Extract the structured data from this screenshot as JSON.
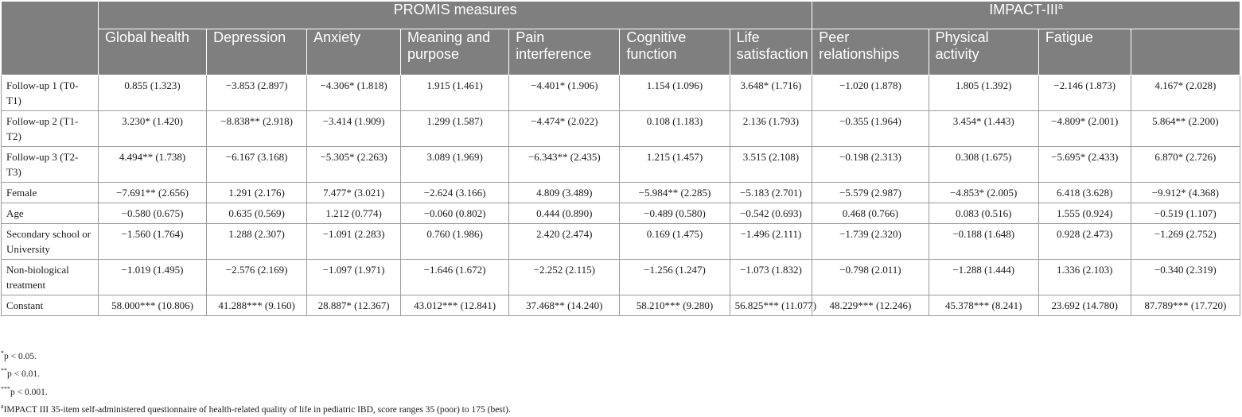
{
  "header": {
    "group_promis": "PROMIS measures",
    "group_impact": "IMPACT-III",
    "group_impact_sup": "a",
    "columns": [
      "Global health",
      "Depression",
      "Anxiety",
      "Meaning and purpose",
      "Pain interference",
      "Cognitive function",
      "Life satisfaction",
      "Peer relationships",
      "Physical activity",
      "Fatigue",
      ""
    ]
  },
  "rows": [
    {
      "label": "Follow-up 1 (T0-T1)",
      "cells": [
        "0.855 (1.323)",
        "−3.853 (2.897)",
        "−4.306* (1.818)",
        "1.915 (1.461)",
        "−4.401* (1.906)",
        "1.154 (1.096)",
        "3.648* (1.716)",
        "−1.020 (1.878)",
        "1.805 (1.392)",
        "−2.146 (1.873)",
        "4.167* (2.028)"
      ]
    },
    {
      "label": "Follow-up 2 (T1-T2)",
      "cells": [
        "3.230* (1.420)",
        "−8.838** (2.918)",
        "−3.414 (1.909)",
        "1.299 (1.587)",
        "−4.474* (2.022)",
        "0.108 (1.183)",
        "2.136 (1.793)",
        "−0.355 (1.964)",
        "3.454* (1.443)",
        "−4.809* (2.001)",
        "5.864** (2.200)"
      ]
    },
    {
      "label": "Follow-up 3 (T2-T3)",
      "cells": [
        "4.494** (1.738)",
        "−6.167 (3.168)",
        "−5.305* (2.263)",
        "3.089 (1.969)",
        "−6.343** (2.435)",
        "1.215 (1.457)",
        "3.515 (2.108)",
        "−0.198 (2.313)",
        "0.308 (1.675)",
        "−5.695* (2.433)",
        "6.870* (2.726)"
      ]
    },
    {
      "label": "Female",
      "cells": [
        "−7.691** (2.656)",
        "1.291 (2.176)",
        "7.477* (3.021)",
        "−2.624 (3.166)",
        "4.809 (3.489)",
        "−5.984** (2.285)",
        "−5.183 (2.701)",
        "−5.579 (2.987)",
        "−4.853* (2.005)",
        "6.418 (3.628)",
        "−9.912* (4.368)"
      ]
    },
    {
      "label": "Age",
      "cells": [
        "−0.580 (0.675)",
        "0.635 (0.569)",
        "1.212 (0.774)",
        "−0.060 (0.802)",
        "0.444 (0.890)",
        "−0.489 (0.580)",
        "−0.542 (0.693)",
        "0.468 (0.766)",
        "0.083 (0.516)",
        "1.555 (0.924)",
        "−0.519 (1.107)"
      ]
    },
    {
      "label": "Secondary school or University",
      "cells": [
        "−1.560 (1.764)",
        "1.288 (2.307)",
        "−1.091 (2.283)",
        "0.760 (1.986)",
        "2.420 (2.474)",
        "0.169 (1.475)",
        "−1.496 (2.111)",
        "−1.739 (2.320)",
        "−0.188 (1.648)",
        "0.928 (2.473)",
        "−1.269 (2.752)"
      ]
    },
    {
      "label": "Non-biological treatment",
      "cells": [
        "−1.019 (1.495)",
        "−2.576 (2.169)",
        "−1.097 (1.971)",
        "−1.646 (1.672)",
        "−2.252 (2.115)",
        "−1.256 (1.247)",
        "−1.073 (1.832)",
        "−0.798 (2.011)",
        "−1.288 (1.444)",
        "1.336 (2.103)",
        "−0.340 (2.319)"
      ]
    },
    {
      "label": "Constant",
      "cells": [
        "58.000*** (10.806)",
        "41.288*** (9.160)",
        "28.887* (12.367)",
        "43.012*** (12.841)",
        "37.468** (14.240)",
        "58.210*** (9.280)",
        "56.825*** (11.077)",
        "48.229*** (12.246)",
        "45.378*** (8.241)",
        "23.692 (14.780)",
        "87.789*** (17.720)"
      ]
    }
  ],
  "footnotes": [
    {
      "mark": "*",
      "text": "p < 0.05."
    },
    {
      "mark": "**",
      "text": "p < 0.01."
    },
    {
      "mark": "***",
      "text": "p < 0.001."
    },
    {
      "mark": "a",
      "text": "IMPACT III 35-item self-administered questionnaire of health-related quality of life in pediatric IBD, score ranges 35 (poor) to 175 (best)."
    }
  ]
}
